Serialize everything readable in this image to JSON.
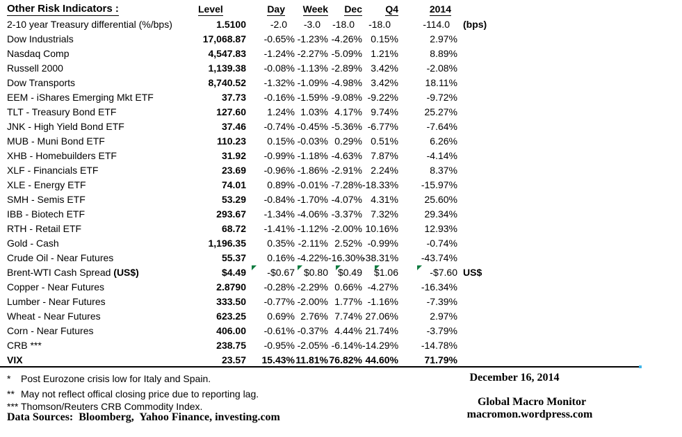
{
  "title": "Other Risk Indicators :",
  "columns": [
    "Level",
    "Day",
    "Week",
    "Dec",
    "Q4",
    "2014"
  ],
  "rows": [
    {
      "label": "2-10 year Treasury differential (%/bps)",
      "level": "1.5100",
      "values": [
        "-2.0",
        "-3.0",
        "-18.0",
        "-18.0",
        "-114.0"
      ],
      "note": "(bps)",
      "tight": true
    },
    {
      "label": "Dow Industrials",
      "level": "17,068.87",
      "values": [
        "-0.65%",
        "-1.23%",
        "-4.26%",
        "0.15%",
        "2.97%"
      ]
    },
    {
      "label": "Nasdaq Comp",
      "level": "4,547.83",
      "values": [
        "-1.24%",
        "-2.27%",
        "-5.09%",
        "1.21%",
        "8.89%"
      ]
    },
    {
      "label": "Russell 2000",
      "level": "1,139.38",
      "values": [
        "-0.08%",
        "-1.13%",
        "-2.89%",
        "3.42%",
        "-2.08%"
      ]
    },
    {
      "label": "Dow Transports",
      "level": "8,740.52",
      "values": [
        "-1.32%",
        "-1.09%",
        "-4.98%",
        "3.42%",
        "18.11%"
      ]
    },
    {
      "label": "EEM - iShares Emerging Mkt ETF",
      "level": "37.73",
      "values": [
        "-0.16%",
        "-1.59%",
        "-9.08%",
        "-9.22%",
        "-9.72%"
      ]
    },
    {
      "label": "TLT - Treasury Bond ETF",
      "level": "127.60",
      "values": [
        "1.24%",
        "1.03%",
        "4.17%",
        "9.74%",
        "25.27%"
      ]
    },
    {
      "label": "JNK - High Yield Bond ETF",
      "level": "37.46",
      "values": [
        "-0.74%",
        "-0.45%",
        "-5.36%",
        "-6.77%",
        "-7.64%"
      ]
    },
    {
      "label": "MUB - Muni Bond ETF",
      "level": "110.23",
      "values": [
        "0.15%",
        "-0.03%",
        "0.29%",
        "0.51%",
        "6.26%"
      ]
    },
    {
      "label": "XHB - Homebuilders ETF",
      "level": "31.92",
      "values": [
        "-0.99%",
        "-1.18%",
        "-4.63%",
        "7.87%",
        "-4.14%"
      ]
    },
    {
      "label": "XLF - Financials ETF",
      "level": "23.69",
      "values": [
        "-0.96%",
        "-1.86%",
        "-2.91%",
        "2.24%",
        "8.37%"
      ]
    },
    {
      "label": "XLE - Energy ETF",
      "level": "74.01",
      "values": [
        "0.89%",
        "-0.01%",
        "-7.28%",
        "-18.33%",
        "-15.97%"
      ]
    },
    {
      "label": "SMH - Semis ETF",
      "level": "53.29",
      "values": [
        "-0.84%",
        "-1.70%",
        "-4.07%",
        "4.31%",
        "25.60%"
      ]
    },
    {
      "label": "IBB - Biotech ETF",
      "level": "293.67",
      "values": [
        "-1.34%",
        "-4.06%",
        "-3.37%",
        "7.32%",
        "29.34%"
      ]
    },
    {
      "label": "RTH - Retail ETF",
      "level": "68.72",
      "values": [
        "-1.41%",
        "-1.12%",
        "-2.00%",
        "10.16%",
        "12.93%"
      ]
    },
    {
      "label": "Gold - Cash",
      "level": "1,196.35",
      "values": [
        "0.35%",
        "-2.11%",
        "2.52%",
        "-0.99%",
        "-0.74%"
      ]
    },
    {
      "label": "Crude Oil - Near Futures",
      "level": "55.37",
      "values": [
        "0.16%",
        "-4.22%",
        "-16.30%",
        "-38.31%",
        "-43.74%"
      ]
    },
    {
      "label": "Brent-WTI Cash Spread ",
      "label_suffix": "(US$)",
      "level": "$4.49",
      "values": [
        "-$0.67",
        "$0.80",
        "$0.49",
        "$1.06",
        "-$7.60"
      ],
      "note": "US$",
      "indicators": true
    },
    {
      "label": "Copper - Near Futures",
      "level": "2.8790",
      "values": [
        "-0.28%",
        "-2.29%",
        "0.66%",
        "-4.27%",
        "-16.34%"
      ]
    },
    {
      "label": "Lumber - Near Futures",
      "level": "333.50",
      "values": [
        "-0.77%",
        "-2.00%",
        "1.77%",
        "-1.16%",
        "-7.39%"
      ]
    },
    {
      "label": "Wheat - Near Futures",
      "level": "623.25",
      "values": [
        "0.69%",
        "2.76%",
        "7.74%",
        "27.06%",
        "2.97%"
      ]
    },
    {
      "label": "Corn - Near Futures",
      "level": "406.00",
      "values": [
        "-0.61%",
        "-0.37%",
        "4.44%",
        "21.74%",
        "-3.79%"
      ]
    },
    {
      "label": "CRB ***",
      "level": "238.75",
      "values": [
        "-0.95%",
        "-2.05%",
        "-6.14%",
        "-14.29%",
        "-14.78%"
      ]
    },
    {
      "label": "VIX",
      "level": "23.57",
      "values": [
        "15.43%",
        "11.81%",
        "76.82%",
        "44.60%",
        "71.79%"
      ],
      "bold": true
    }
  ],
  "footnotes": [
    {
      "marker": "*",
      "text": "Post Eurozone crisis low for Italy and Spain."
    },
    {
      "marker": "**",
      "text": "May not reflect offical closing price due to reporting lag."
    },
    {
      "marker": "***",
      "text": "Thomson/Reuters CRB Commodity Index."
    }
  ],
  "data_sources": "Data Sources:  Bloomberg,  Yahoo Finance, investing.com",
  "footer_right": {
    "date": "December 16, 2014",
    "org": "Global Macro Monitor",
    "url": "macromon.wordpress.com"
  },
  "colors": {
    "indicator_green": "#107C41",
    "line_marker_blue": "#3FB5E8"
  }
}
